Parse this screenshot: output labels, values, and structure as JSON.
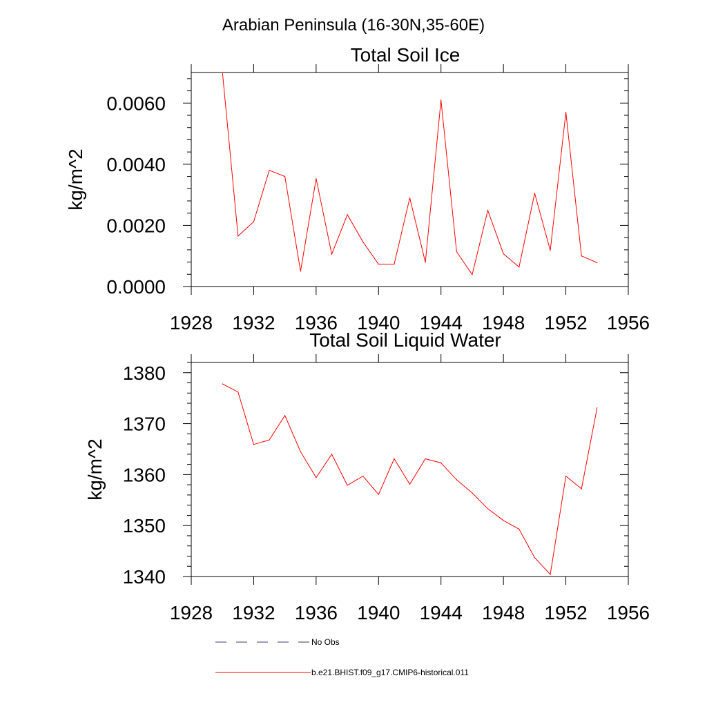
{
  "figure": {
    "title": "Arabian Peninsula (16-30N,35-60E)"
  },
  "colors": {
    "model_line": "#ff0000",
    "obs_line": "#3a3a6e",
    "axes": "#000000"
  },
  "chart_data": [
    {
      "type": "line",
      "title": "Total Soil Ice",
      "xlabel": "",
      "ylabel": "kg/m^2",
      "xlim": [
        1928,
        1956
      ],
      "ylim": [
        0,
        0.007
      ],
      "x_ticks": [
        1928,
        1932,
        1936,
        1940,
        1944,
        1948,
        1952,
        1956
      ],
      "x_tick_labels": [
        "1928",
        "1932",
        "1936",
        "1940",
        "1944",
        "1948",
        "1952",
        "1956"
      ],
      "y_ticks": [
        0,
        0.002,
        0.004,
        0.006
      ],
      "y_tick_labels": [
        "0.0000",
        "0.0020",
        "0.0040",
        "0.0060"
      ],
      "grid": false,
      "series": [
        {
          "name": "b.e21.BHIST.f09_g17.CMIP6-historical.011",
          "x": [
            1930,
            1931,
            1932,
            1933,
            1934,
            1935,
            1936,
            1937,
            1938,
            1939,
            1940,
            1941,
            1942,
            1943,
            1944,
            1945,
            1946,
            1947,
            1948,
            1949,
            1950,
            1951,
            1952,
            1953,
            1954
          ],
          "values": [
            0.007,
            0.00165,
            0.00212,
            0.0038,
            0.0036,
            0.0005,
            0.00353,
            0.00106,
            0.00235,
            0.00146,
            0.00073,
            0.00073,
            0.0029,
            0.00079,
            0.0061,
            0.00114,
            0.00039,
            0.00249,
            0.00107,
            0.00064,
            0.00305,
            0.00118,
            0.0057,
            0.001,
            0.00078
          ]
        }
      ]
    },
    {
      "type": "line",
      "title": "Total Soil Liquid Water",
      "xlabel": "",
      "ylabel": "kg/m^2",
      "xlim": [
        1928,
        1956
      ],
      "ylim": [
        1340,
        1382
      ],
      "x_ticks": [
        1928,
        1932,
        1936,
        1940,
        1944,
        1948,
        1952,
        1956
      ],
      "x_tick_labels": [
        "1928",
        "1932",
        "1936",
        "1940",
        "1944",
        "1948",
        "1952",
        "1956"
      ],
      "y_ticks": [
        1340,
        1350,
        1360,
        1370,
        1380
      ],
      "y_tick_labels": [
        "1340",
        "1350",
        "1360",
        "1370",
        "1380"
      ],
      "grid": false,
      "series": [
        {
          "name": "b.e21.BHIST.f09_g17.CMIP6-historical.011",
          "x": [
            1930,
            1931,
            1932,
            1933,
            1934,
            1935,
            1936,
            1937,
            1938,
            1939,
            1940,
            1941,
            1942,
            1943,
            1944,
            1945,
            1946,
            1947,
            1948,
            1949,
            1950,
            1951,
            1952,
            1953,
            1954
          ],
          "values": [
            1377.8,
            1376.2,
            1365.9,
            1366.8,
            1371.6,
            1364.5,
            1359.4,
            1364.0,
            1357.9,
            1359.7,
            1356.1,
            1363.1,
            1358.1,
            1363.1,
            1362.3,
            1359.0,
            1356.4,
            1353.3,
            1351.0,
            1349.3,
            1343.7,
            1340.4,
            1359.7,
            1357.2,
            1373.1
          ]
        }
      ]
    }
  ],
  "legend": {
    "placement": "bottom",
    "entries": [
      {
        "label": "No Obs",
        "style": "dashed",
        "color": "#3a3a6e"
      },
      {
        "label": "b.e21.BHIST.f09_g17.CMIP6-historical.011",
        "style": "solid",
        "color": "#ff0000"
      }
    ]
  }
}
